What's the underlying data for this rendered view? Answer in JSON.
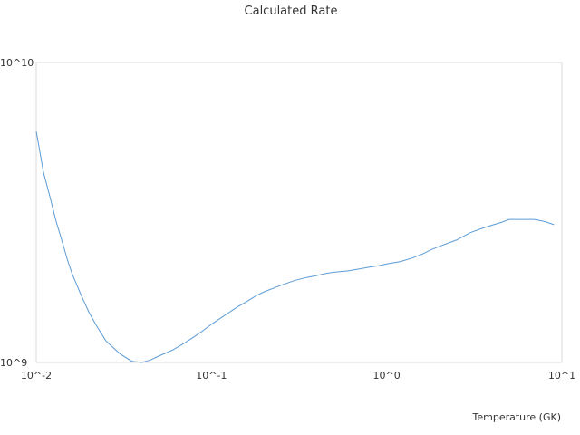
{
  "chart_data": {
    "type": "line",
    "title": "Calculated Rate",
    "xlabel": "Temperature (GK)",
    "ylabel": "",
    "x_scale": "log",
    "y_scale": "log",
    "xlim": [
      0.01,
      10
    ],
    "ylim": [
      1000000000,
      10000000000
    ],
    "grid": false,
    "x_ticks": [
      {
        "value": 0.01,
        "label": "10^-2"
      },
      {
        "value": 0.1,
        "label": "10^-1"
      },
      {
        "value": 1,
        "label": "10^0"
      },
      {
        "value": 10,
        "label": "10^1"
      }
    ],
    "y_ticks": [
      {
        "value": 1000000000,
        "label": "10^9"
      },
      {
        "value": 10000000000,
        "label": "10^10"
      }
    ],
    "series": [
      {
        "color": "#5b9bd5",
        "x": [
          0.01,
          0.011,
          0.012,
          0.013,
          0.014,
          0.015,
          0.016,
          0.018,
          0.02,
          0.022,
          0.025,
          0.03,
          0.035,
          0.04,
          0.045,
          0.05,
          0.06,
          0.07,
          0.08,
          0.09,
          0.1,
          0.12,
          0.14,
          0.16,
          0.18,
          0.2,
          0.25,
          0.3,
          0.35,
          0.4,
          0.45,
          0.5,
          0.6,
          0.7,
          0.8,
          0.9,
          1.0,
          1.2,
          1.4,
          1.6,
          1.8,
          2.0,
          2.5,
          3.0,
          3.5,
          4.0,
          4.5,
          5.0,
          6.0,
          7.0,
          8.0,
          9.0
        ],
        "y": [
          5900000000.0,
          4300000000.0,
          3550000000.0,
          2950000000.0,
          2550000000.0,
          2220000000.0,
          1980000000.0,
          1680000000.0,
          1470000000.0,
          1330000000.0,
          1180000000.0,
          1070000000.0,
          1010000000.0,
          1000000000.0,
          1020000000.0,
          1050000000.0,
          1100000000.0,
          1160000000.0,
          1220000000.0,
          1280000000.0,
          1340000000.0,
          1440000000.0,
          1530000000.0,
          1600000000.0,
          1670000000.0,
          1720000000.0,
          1810000000.0,
          1880000000.0,
          1920000000.0,
          1950000000.0,
          1980000000.0,
          2000000000.0,
          2020000000.0,
          2050000000.0,
          2080000000.0,
          2100000000.0,
          2130000000.0,
          2170000000.0,
          2230000000.0,
          2300000000.0,
          2380000000.0,
          2440000000.0,
          2560000000.0,
          2710000000.0,
          2800000000.0,
          2870000000.0,
          2930000000.0,
          3000000000.0,
          3000000000.0,
          3000000000.0,
          2950000000.0,
          2880000000.0
        ]
      }
    ]
  }
}
